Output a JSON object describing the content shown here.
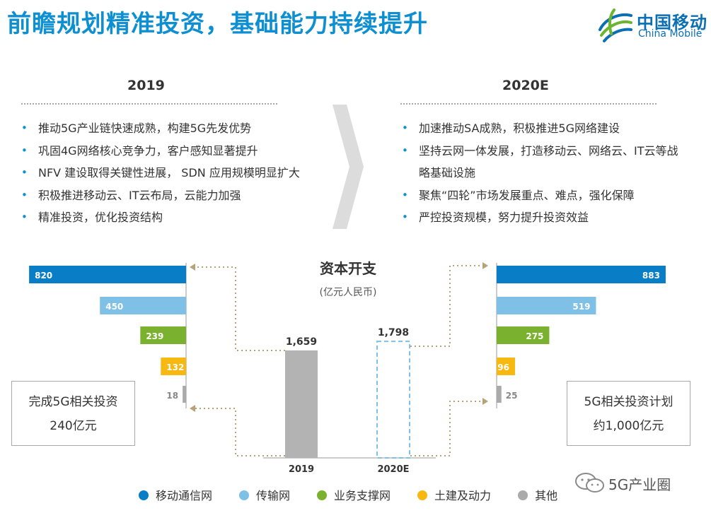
{
  "header": {
    "title": "前瞻规划精准投资，基础能力持续提升",
    "logo_cn": "中国移动",
    "logo_en": "China Mobile"
  },
  "left_column": {
    "heading": "2019",
    "bullets": [
      "推动5G产业链快速成熟，构建5G先发优势",
      "巩固4G网络核心竞争力，客户感知显著提升",
      "NFV 建设取得关键性进展， SDN 应用规模明显扩大",
      "积极推进移动云、IT云布局，云能力加强",
      "精准投资，优化投资结构"
    ]
  },
  "right_column": {
    "heading": "2020E",
    "bullets": [
      "加速推动SA成熟，积极推进5G网络建设",
      "坚持云网一体发展，打造移动云、网络云、IT云等战略基础设施",
      "聚焦“四轮”市场发展重点、难点，强化保障",
      "严控投资规模，努力提升投资效益"
    ]
  },
  "callouts": {
    "left": [
      "完成5G相关投资",
      "240亿元"
    ],
    "right": [
      "5G相关投资计划",
      "约1,000亿元"
    ]
  },
  "watermark": "5G产业圈",
  "colors": {
    "brand_blue": "#0e8fd1",
    "mobile_comm": "#0a7dc7",
    "transmission": "#7ec0e6",
    "business_support": "#7ab22f",
    "civil_power": "#f8b812",
    "other": "#aaaaaa",
    "total_bar": "#b3b3b3",
    "dashed_box": "#7ec0e6",
    "connector": "#b8a27a"
  },
  "chart_data": {
    "type": "bar",
    "title": "资本开支",
    "subtitle": "(亿元人民币)",
    "totals": {
      "categories": [
        "2019",
        "2020E"
      ],
      "values": [
        1659,
        1798
      ],
      "labels": [
        "1,659",
        "1,798"
      ],
      "styles": [
        "solid",
        "dashed-outline"
      ]
    },
    "series": [
      {
        "name": "移动通信网",
        "color_key": "mobile_comm",
        "values": [
          820,
          883
        ]
      },
      {
        "name": "传输网",
        "color_key": "transmission",
        "values": [
          450,
          519
        ]
      },
      {
        "name": "业务支撑网",
        "color_key": "business_support",
        "values": [
          239,
          275
        ]
      },
      {
        "name": "土建及动力",
        "color_key": "civil_power",
        "values": [
          132,
          96
        ]
      },
      {
        "name": "其他",
        "color_key": "other",
        "values": [
          18,
          25
        ]
      }
    ],
    "legend_position": "bottom",
    "grid": false
  }
}
